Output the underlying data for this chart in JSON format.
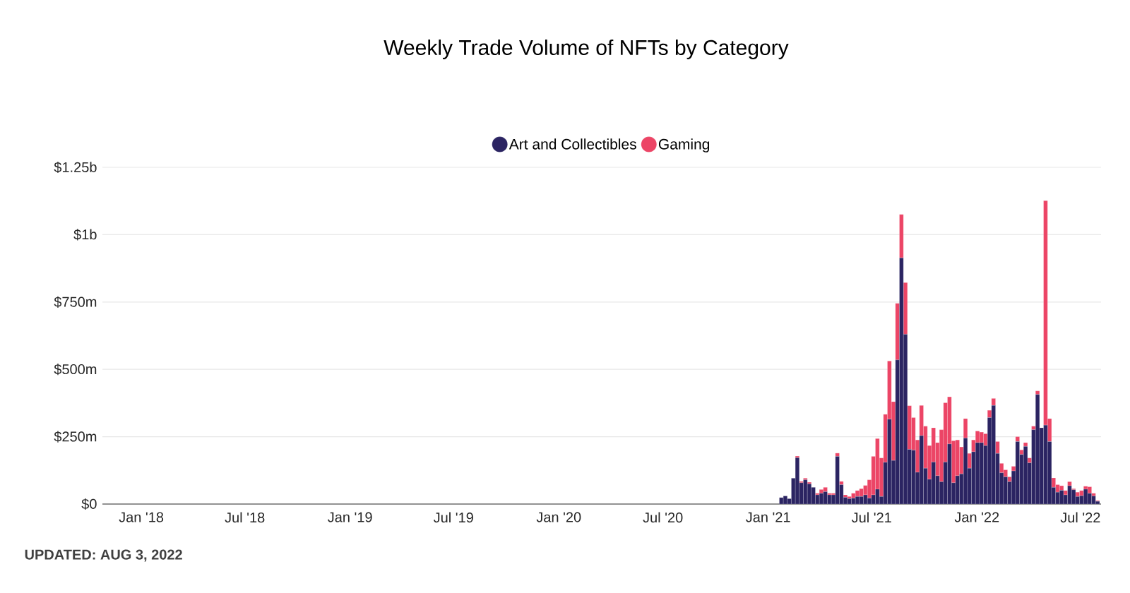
{
  "chart_data": {
    "type": "bar",
    "stacked": true,
    "title": "Weekly Trade Volume of NFTs by Category",
    "annotations": [
      "UPDATED: AUG 3, 2022"
    ],
    "x": [
      "2021-01-24",
      "2021-01-31",
      "2021-02-07",
      "2021-02-14",
      "2021-02-21",
      "2021-02-28",
      "2021-03-07",
      "2021-03-14",
      "2021-03-21",
      "2021-03-28",
      "2021-04-04",
      "2021-04-11",
      "2021-04-18",
      "2021-04-25",
      "2021-05-02",
      "2021-05-09",
      "2021-05-16",
      "2021-05-23",
      "2021-05-30",
      "2021-06-06",
      "2021-06-13",
      "2021-06-20",
      "2021-06-27",
      "2021-07-04",
      "2021-07-11",
      "2021-07-18",
      "2021-07-25",
      "2021-08-01",
      "2021-08-08",
      "2021-08-15",
      "2021-08-22",
      "2021-08-29",
      "2021-09-05",
      "2021-09-12",
      "2021-09-19",
      "2021-09-26",
      "2021-10-03",
      "2021-10-10",
      "2021-10-17",
      "2021-10-24",
      "2021-10-31",
      "2021-11-07",
      "2021-11-14",
      "2021-11-21",
      "2021-11-28",
      "2021-12-05",
      "2021-12-12",
      "2021-12-19",
      "2021-12-26",
      "2022-01-02",
      "2022-01-09",
      "2022-01-16",
      "2022-01-23",
      "2022-01-30",
      "2022-02-06",
      "2022-02-13",
      "2022-02-20",
      "2022-02-27",
      "2022-03-06",
      "2022-03-13",
      "2022-03-20",
      "2022-03-27",
      "2022-04-03",
      "2022-04-10",
      "2022-04-17",
      "2022-04-24",
      "2022-05-01",
      "2022-05-08",
      "2022-05-15",
      "2022-05-22",
      "2022-05-29",
      "2022-06-05",
      "2022-06-12",
      "2022-06-19",
      "2022-06-26",
      "2022-07-03",
      "2022-07-10",
      "2022-07-17",
      "2022-07-24",
      "2022-07-31"
    ],
    "series": [
      {
        "name": "Art and Collectibles",
        "color": "#2b2462",
        "values": [
          24000000.0,
          30000000.0,
          20000000.0,
          96000000.0,
          172000000.0,
          79000000.0,
          90000000.0,
          75000000.0,
          62000000.0,
          34000000.0,
          40000000.0,
          46000000.0,
          34000000.0,
          34000000.0,
          177000000.0,
          72000000.0,
          25000000.0,
          20000000.0,
          22000000.0,
          28000000.0,
          28000000.0,
          34000000.0,
          22000000.0,
          34000000.0,
          55000000.0,
          28000000.0,
          155000000.0,
          315000000.0,
          162000000.0,
          535000000.0,
          914000000.0,
          630000000.0,
          203000000.0,
          200000000.0,
          118000000.0,
          254000000.0,
          133000000.0,
          92000000.0,
          156000000.0,
          105000000.0,
          83000000.0,
          156000000.0,
          223000000.0,
          79000000.0,
          105000000.0,
          112000000.0,
          245000000.0,
          133000000.0,
          194000000.0,
          228000000.0,
          228000000.0,
          217000000.0,
          321000000.0,
          366000000.0,
          188000000.0,
          116000000.0,
          101000000.0,
          83000000.0,
          123000000.0,
          232000000.0,
          184000000.0,
          214000000.0,
          153000000.0,
          276000000.0,
          407000000.0,
          283000000.0,
          293000000.0,
          232000000.0,
          62000000.0,
          44000000.0,
          51000000.0,
          34000000.0,
          68000000.0,
          53000000.0,
          28000000.0,
          31000000.0,
          55000000.0,
          40000000.0,
          30000000.0,
          10000000.0
        ]
      },
      {
        "name": "Gaming",
        "color": "#ec4566",
        "values": [
          0,
          0,
          0,
          0,
          6000000.0,
          5000000.0,
          6000000.0,
          6000000.0,
          0,
          6000000.0,
          14000000.0,
          16000000.0,
          6000000.0,
          6000000.0,
          12000000.0,
          12000000.0,
          9000000.0,
          8000000.0,
          18000000.0,
          22000000.0,
          29000000.0,
          35000000.0,
          68000000.0,
          143000000.0,
          188000000.0,
          143000000.0,
          178000000.0,
          216000000.0,
          218000000.0,
          210000000.0,
          161000000.0,
          192000000.0,
          162000000.0,
          121000000.0,
          120000000.0,
          112000000.0,
          156000000.0,
          125000000.0,
          127000000.0,
          123000000.0,
          193000000.0,
          220000000.0,
          175000000.0,
          156000000.0,
          133000000.0,
          100000000.0,
          72000000.0,
          55000000.0,
          44000000.0,
          43000000.0,
          39000000.0,
          44000000.0,
          27000000.0,
          26000000.0,
          44000000.0,
          35000000.0,
          26000000.0,
          18000000.0,
          17000000.0,
          18000000.0,
          17000000.0,
          14000000.0,
          18000000.0,
          13000000.0,
          13000000.0,
          0,
          833000000.0,
          85000000.0,
          35000000.0,
          28000000.0,
          17000000.0,
          16000000.0,
          15000000.0,
          4000000.0,
          16000000.0,
          19000000.0,
          11000000.0,
          24000000.0,
          10000000.0,
          3000000.0
        ]
      }
    ],
    "xlim": [
      "2017-10-25",
      "2022-08-06"
    ],
    "xticks": [
      {
        "value": "2018-01-01",
        "label": "Jan '18"
      },
      {
        "value": "2018-07-01",
        "label": "Jul '18"
      },
      {
        "value": "2019-01-01",
        "label": "Jan '19"
      },
      {
        "value": "2019-07-01",
        "label": "Jul '19"
      },
      {
        "value": "2020-01-01",
        "label": "Jan '20"
      },
      {
        "value": "2020-07-01",
        "label": "Jul '20"
      },
      {
        "value": "2021-01-01",
        "label": "Jan '21"
      },
      {
        "value": "2021-07-01",
        "label": "Jul '21"
      },
      {
        "value": "2022-01-01",
        "label": "Jan '22"
      },
      {
        "value": "2022-07-01",
        "label": "Jul '22"
      }
    ],
    "ylim": [
      0,
      1250000000
    ],
    "yticks": [
      {
        "value": 0,
        "label": "$0"
      },
      {
        "value": 250000000,
        "label": "$250m"
      },
      {
        "value": 500000000,
        "label": "$500m"
      },
      {
        "value": 750000000,
        "label": "$750m"
      },
      {
        "value": 1000000000,
        "label": "$1b"
      },
      {
        "value": 1250000000,
        "label": "$1.25b"
      }
    ],
    "grid": "y",
    "legend": "top"
  }
}
